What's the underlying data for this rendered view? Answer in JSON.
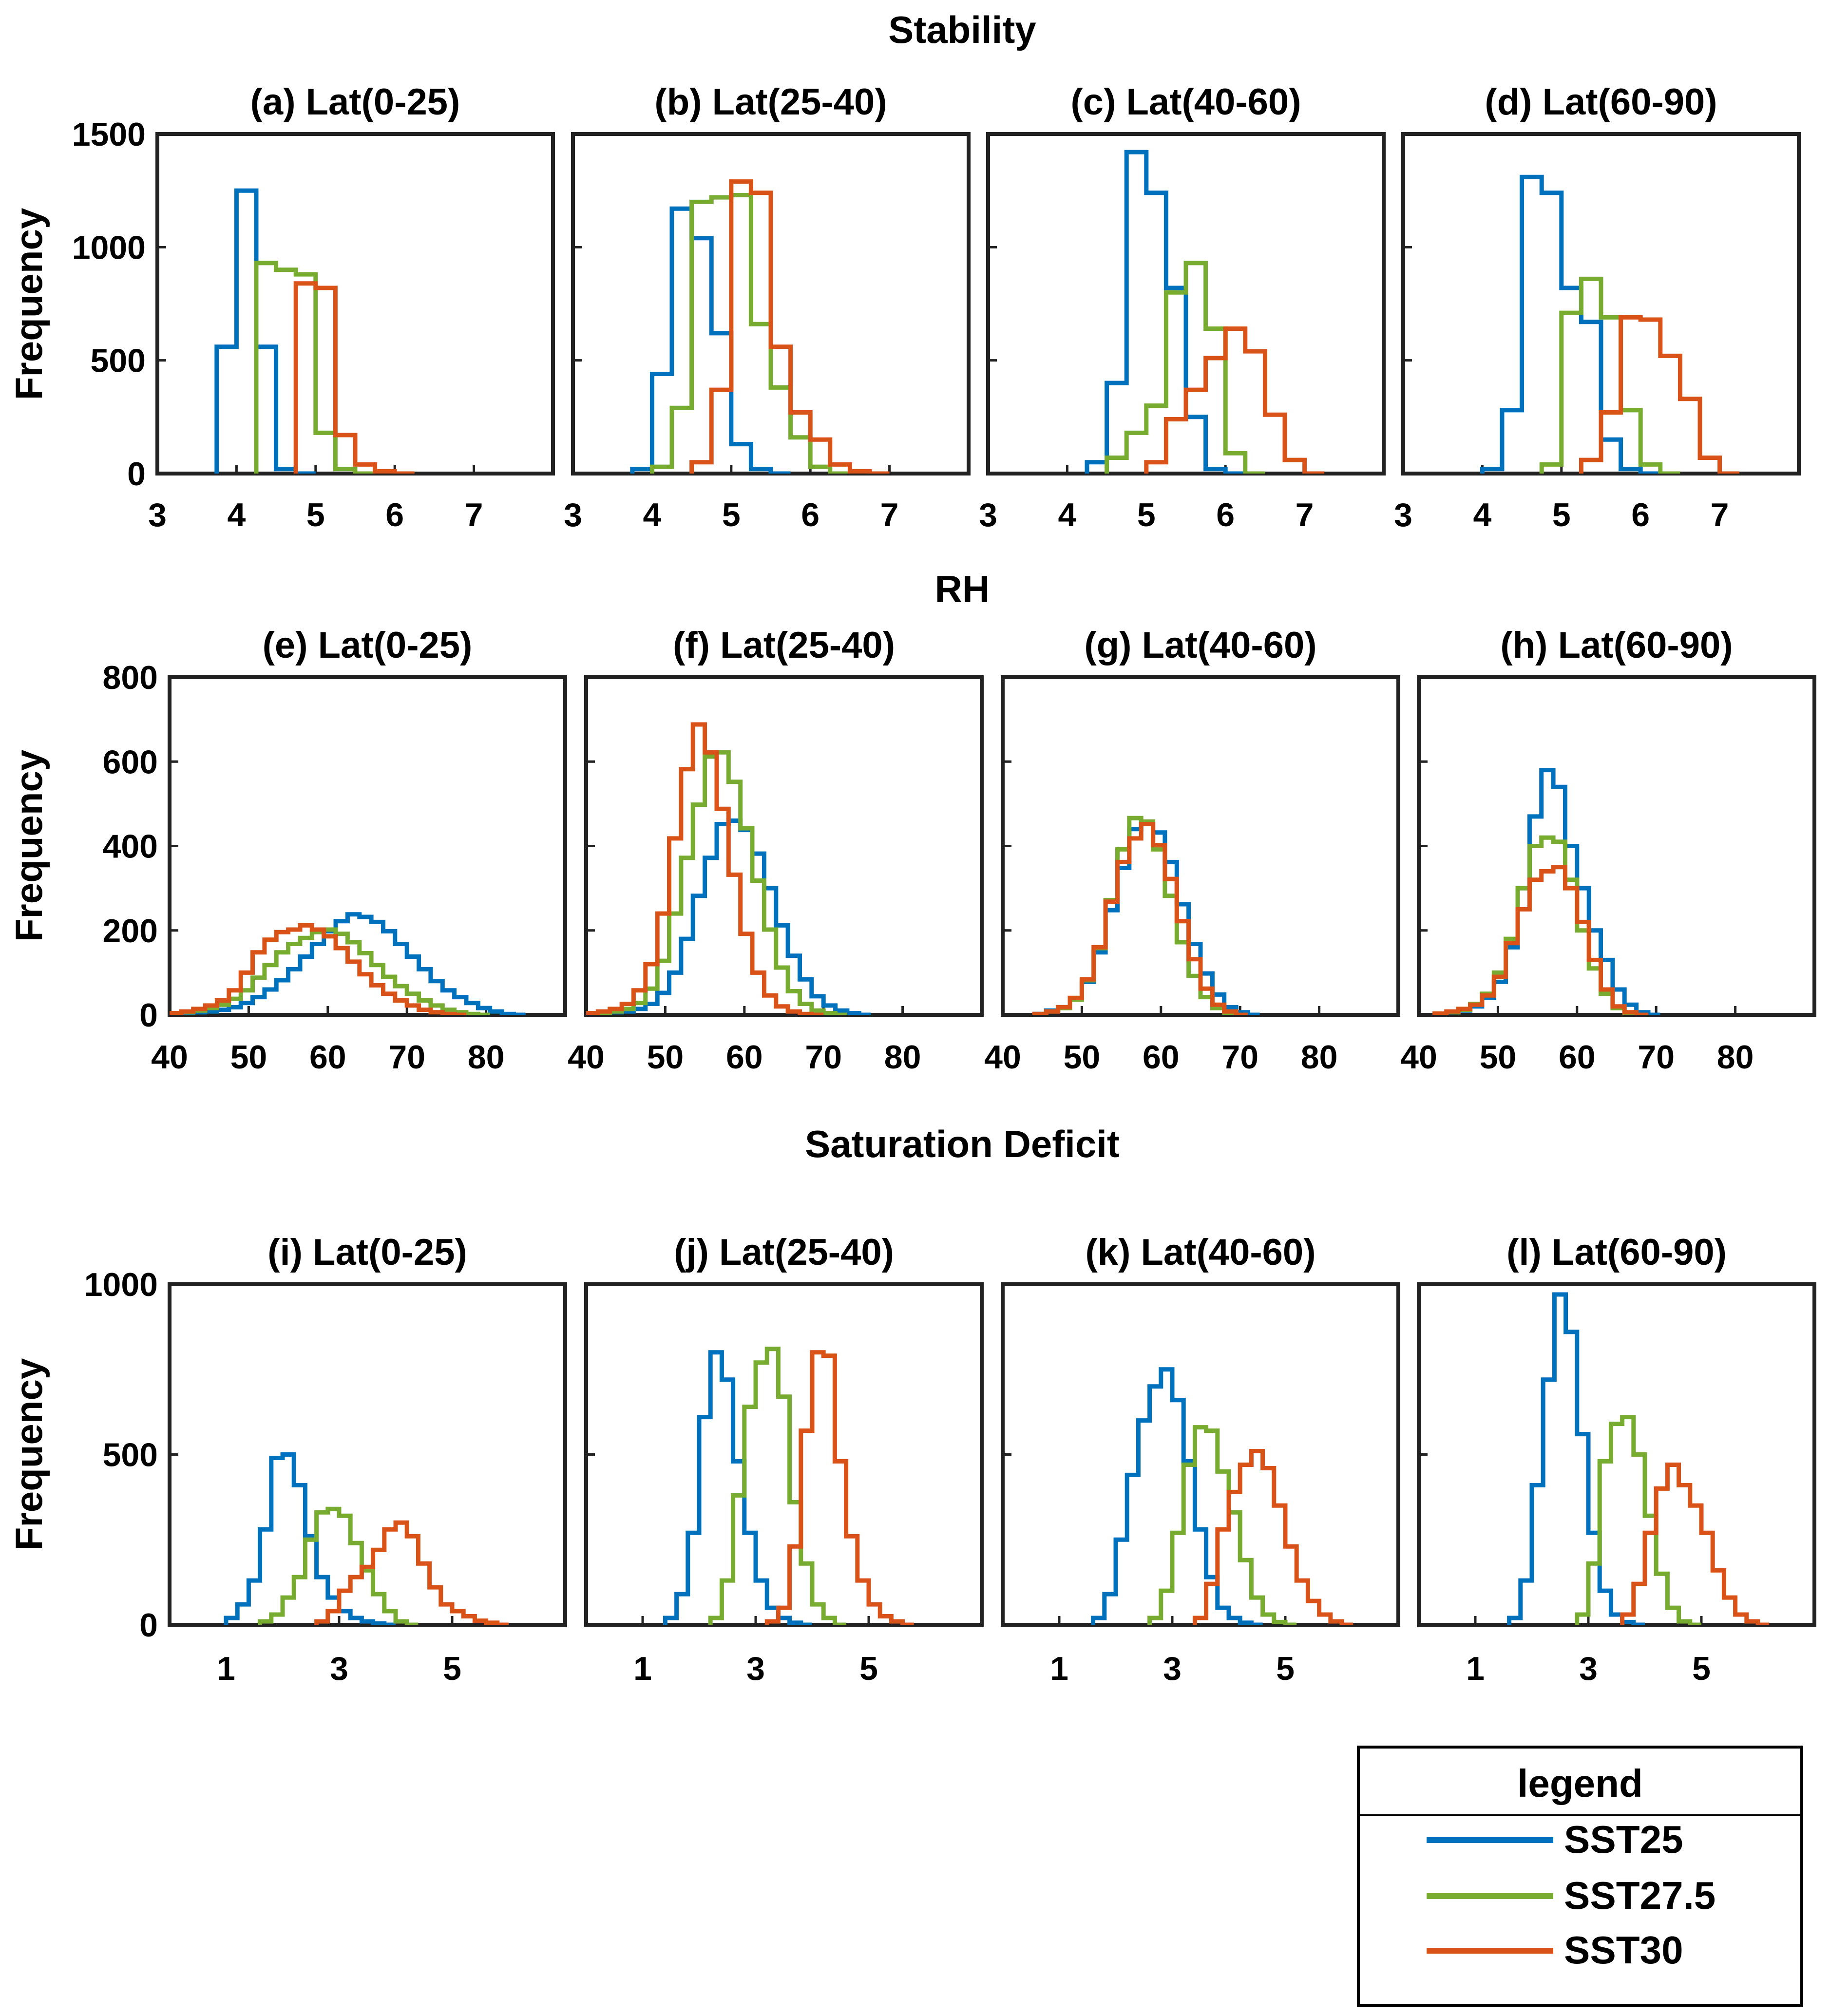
{
  "colors": {
    "SST25": "#0072BD",
    "SST27.5": "#77AC30",
    "SST30": "#D95319"
  },
  "legend": {
    "title": "legend",
    "entries": [
      "SST25",
      "SST27.5",
      "SST30"
    ]
  },
  "chart_data": [
    {
      "row_title": "Stability",
      "ylabel": "Frequency",
      "type": "histogram",
      "xlim": [
        3,
        8
      ],
      "ylim": [
        0,
        1500
      ],
      "xticks": [
        3,
        4,
        5,
        6,
        7
      ],
      "yticks": [
        0,
        500,
        1000,
        1500
      ],
      "bin_width": 0.25,
      "panels": [
        {
          "title": "(a) Lat(0-25)",
          "series": [
            {
              "name": "SST25",
              "edges_start": 3.75,
              "values": [
                560,
                1250,
                560,
                20,
                0
              ]
            },
            {
              "name": "SST27.5",
              "edges_start": 4.25,
              "values": [
                930,
                900,
                880,
                180,
                20,
                0
              ]
            },
            {
              "name": "SST30",
              "edges_start": 4.75,
              "values": [
                840,
                820,
                170,
                40,
                10,
                0
              ]
            }
          ]
        },
        {
          "title": "(b) Lat(25-40)",
          "series": [
            {
              "name": "SST25",
              "edges_start": 3.75,
              "values": [
                20,
                440,
                1170,
                1040,
                620,
                130,
                20,
                0
              ]
            },
            {
              "name": "SST27.5",
              "edges_start": 4.0,
              "values": [
                30,
                290,
                1200,
                1220,
                1230,
                660,
                380,
                160,
                30,
                0
              ]
            },
            {
              "name": "SST30",
              "edges_start": 4.5,
              "values": [
                50,
                370,
                1290,
                1240,
                560,
                270,
                150,
                40,
                10,
                0
              ]
            }
          ]
        },
        {
          "title": "(c) Lat(40-60)",
          "series": [
            {
              "name": "SST25",
              "edges_start": 4.25,
              "values": [
                50,
                400,
                1420,
                1240,
                820,
                250,
                20,
                0
              ]
            },
            {
              "name": "SST27.5",
              "edges_start": 4.5,
              "values": [
                70,
                180,
                300,
                800,
                930,
                640,
                90,
                0
              ]
            },
            {
              "name": "SST30",
              "edges_start": 5.0,
              "values": [
                50,
                240,
                370,
                510,
                640,
                540,
                260,
                60,
                0
              ]
            }
          ]
        },
        {
          "title": "(d) Lat(60-90)",
          "series": [
            {
              "name": "SST25",
              "edges_start": 4.0,
              "values": [
                20,
                280,
                1310,
                1240,
                820,
                670,
                150,
                20,
                0
              ]
            },
            {
              "name": "SST27.5",
              "edges_start": 4.75,
              "values": [
                40,
                710,
                860,
                690,
                280,
                40,
                0
              ]
            },
            {
              "name": "SST30",
              "edges_start": 5.25,
              "values": [
                60,
                270,
                690,
                680,
                520,
                330,
                70,
                0
              ]
            }
          ]
        }
      ]
    },
    {
      "row_title": "RH",
      "ylabel": "Frequency",
      "type": "histogram",
      "xlim": [
        40,
        90
      ],
      "ylim": [
        0,
        800
      ],
      "xticks": [
        40,
        50,
        60,
        70,
        80
      ],
      "yticks": [
        0,
        200,
        400,
        600,
        800
      ],
      "bin_width": 1.5,
      "panels": [
        {
          "title": "(e) Lat(0-25)",
          "series": [
            {
              "name": "SST25",
              "edges_start": 40,
              "values": [
                2,
                4,
                6,
                8,
                12,
                18,
                28,
                42,
                60,
                82,
                108,
                138,
                168,
                198,
                222,
                238,
                232,
                220,
                198,
                168,
                138,
                108,
                80,
                58,
                42,
                28,
                16,
                8,
                2,
                0
              ]
            },
            {
              "name": "SST27.5",
              "edges_start": 40,
              "values": [
                3,
                6,
                10,
                16,
                24,
                38,
                58,
                88,
                118,
                148,
                168,
                182,
                196,
                202,
                192,
                172,
                146,
                118,
                90,
                68,
                50,
                34,
                22,
                12,
                6,
                2,
                0
              ]
            },
            {
              "name": "SST30",
              "edges_start": 40,
              "values": [
                4,
                8,
                14,
                22,
                34,
                58,
                100,
                148,
                178,
                196,
                202,
                212,
                202,
                186,
                158,
                126,
                96,
                70,
                50,
                34,
                22,
                12,
                6,
                2,
                0
              ]
            }
          ]
        },
        {
          "title": "(f) Lat(25-40)",
          "series": [
            {
              "name": "SST25",
              "edges_start": 40,
              "values": [
                2,
                4,
                6,
                8,
                14,
                26,
                52,
                100,
                180,
                282,
                372,
                452,
                460,
                438,
                382,
                300,
                212,
                140,
                84,
                44,
                22,
                10,
                4,
                0
              ]
            },
            {
              "name": "SST27.5",
              "edges_start": 40,
              "values": [
                3,
                5,
                8,
                14,
                28,
                62,
                128,
                240,
                372,
                498,
                612,
                622,
                552,
                442,
                318,
                202,
                112,
                56,
                26,
                10,
                4,
                0
              ]
            },
            {
              "name": "SST30",
              "edges_start": 40,
              "values": [
                4,
                8,
                14,
                26,
                58,
                120,
                240,
                418,
                582,
                688,
                622,
                488,
                332,
                192,
                100,
                46,
                20,
                8,
                2,
                0
              ]
            }
          ]
        },
        {
          "title": "(g) Lat(40-60)",
          "series": [
            {
              "name": "SST25",
              "edges_start": 44,
              "values": [
                2,
                10,
                18,
                38,
                78,
                148,
                248,
                348,
                440,
                452,
                432,
                362,
                262,
                168,
                98,
                48,
                18,
                6,
                0
              ]
            },
            {
              "name": "SST27.5",
              "edges_start": 44,
              "values": [
                1,
                8,
                16,
                36,
                82,
                158,
                272,
                392,
                466,
                458,
                392,
                282,
                172,
                92,
                42,
                16,
                4,
                0
              ]
            },
            {
              "name": "SST30",
              "edges_start": 44,
              "values": [
                2,
                8,
                18,
                40,
                84,
                160,
                268,
                362,
                418,
                452,
                402,
                322,
                222,
                132,
                62,
                24,
                8,
                0
              ]
            }
          ]
        },
        {
          "title": "(h) Lat(60-90)",
          "series": [
            {
              "name": "SST25",
              "edges_start": 42,
              "values": [
                2,
                6,
                10,
                20,
                40,
                78,
                160,
                300,
                470,
                580,
                540,
                400,
                300,
                200,
                130,
                60,
                24,
                6,
                0
              ]
            },
            {
              "name": "SST27.5",
              "edges_start": 42,
              "values": [
                2,
                6,
                12,
                26,
                50,
                100,
                180,
                300,
                400,
                420,
                410,
                320,
                200,
                110,
                50,
                16,
                4,
                0
              ]
            },
            {
              "name": "SST30",
              "edges_start": 42,
              "values": [
                3,
                8,
                14,
                24,
                46,
                90,
                170,
                250,
                320,
                340,
                350,
                300,
                220,
                130,
                60,
                20,
                6,
                0
              ]
            }
          ]
        }
      ]
    },
    {
      "row_title": "Saturation Deficit",
      "ylabel": "Frequency",
      "type": "histogram",
      "xlim": [
        0,
        7
      ],
      "ylim": [
        0,
        1000
      ],
      "xticks": [
        1,
        3,
        5
      ],
      "yticks": [
        0,
        500,
        1000
      ],
      "bin_width": 0.2,
      "panels": [
        {
          "title": "(i) Lat(0-25)",
          "series": [
            {
              "name": "SST25",
              "edges_start": 1.0,
              "values": [
                20,
                60,
                130,
                280,
                490,
                500,
                410,
                260,
                140,
                80,
                40,
                20,
                10,
                4,
                0
              ]
            },
            {
              "name": "SST27.5",
              "edges_start": 1.6,
              "values": [
                10,
                30,
                80,
                140,
                250,
                330,
                340,
                320,
                240,
                160,
                90,
                40,
                10,
                0
              ]
            },
            {
              "name": "SST30",
              "edges_start": 2.6,
              "values": [
                10,
                40,
                100,
                140,
                170,
                220,
                280,
                300,
                260,
                180,
                110,
                60,
                40,
                25,
                12,
                6,
                0
              ]
            }
          ]
        },
        {
          "title": "(j) Lat(25-40)",
          "series": [
            {
              "name": "SST25",
              "edges_start": 1.4,
              "values": [
                20,
                90,
                270,
                610,
                800,
                720,
                480,
                270,
                130,
                50,
                20,
                6,
                0
              ]
            },
            {
              "name": "SST27.5",
              "edges_start": 2.2,
              "values": [
                20,
                130,
                380,
                640,
                770,
                810,
                670,
                360,
                180,
                60,
                20,
                0
              ]
            },
            {
              "name": "SST30",
              "edges_start": 3.2,
              "values": [
                10,
                50,
                230,
                570,
                800,
                790,
                480,
                260,
                130,
                60,
                25,
                10,
                0
              ]
            }
          ]
        },
        {
          "title": "(k) Lat(40-60)",
          "series": [
            {
              "name": "SST25",
              "edges_start": 1.6,
              "values": [
                20,
                90,
                250,
                440,
                600,
                700,
                750,
                660,
                480,
                280,
                140,
                50,
                20,
                6,
                0
              ]
            },
            {
              "name": "SST27.5",
              "edges_start": 2.6,
              "values": [
                20,
                100,
                270,
                470,
                580,
                570,
                450,
                330,
                190,
                80,
                30,
                8,
                0
              ]
            },
            {
              "name": "SST30",
              "edges_start": 3.4,
              "values": [
                20,
                120,
                280,
                390,
                470,
                510,
                460,
                350,
                230,
                130,
                70,
                30,
                10,
                0
              ]
            }
          ]
        },
        {
          "title": "(l) Lat(60-90)",
          "series": [
            {
              "name": "SST25",
              "edges_start": 1.6,
              "values": [
                20,
                130,
                410,
                720,
                970,
                860,
                560,
                270,
                100,
                30,
                8,
                0
              ]
            },
            {
              "name": "SST27.5",
              "edges_start": 2.8,
              "values": [
                30,
                180,
                480,
                590,
                610,
                500,
                320,
                150,
                50,
                10,
                0
              ]
            },
            {
              "name": "SST30",
              "edges_start": 3.6,
              "values": [
                30,
                120,
                270,
                400,
                470,
                410,
                350,
                270,
                160,
                80,
                30,
                10,
                0
              ]
            }
          ]
        }
      ]
    }
  ]
}
